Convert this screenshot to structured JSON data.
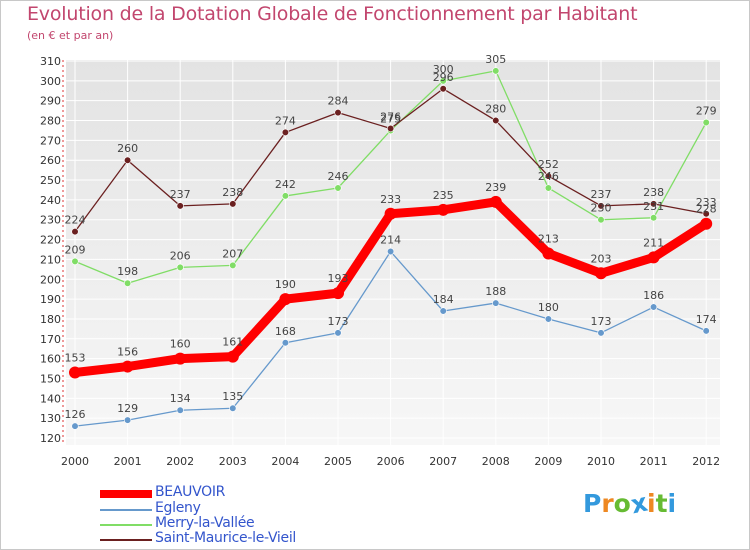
{
  "chart_data": {
    "type": "line",
    "title": "Evolution de la Dotation Globale de Fonctionnement par Habitant",
    "subtitle": "(en € et par an)",
    "x": [
      "2000",
      "2001",
      "2002",
      "2003",
      "2004",
      "2005",
      "2006",
      "2007",
      "2008",
      "2009",
      "2010",
      "2011",
      "2012"
    ],
    "ylim": [
      120,
      310
    ],
    "yticks": [
      120,
      130,
      140,
      150,
      160,
      170,
      180,
      190,
      200,
      210,
      220,
      230,
      240,
      250,
      260,
      270,
      280,
      290,
      300,
      310
    ],
    "grid": true,
    "legend_position": "bottom-left",
    "series": [
      {
        "name": "BEAUVOIR",
        "color": "#ff0000",
        "emphasis": true,
        "values": [
          153,
          156,
          160,
          161,
          190,
          193,
          233,
          235,
          239,
          213,
          203,
          211,
          228
        ],
        "labels": [
          "153",
          "156",
          "160",
          "161",
          "190",
          "193",
          "233",
          "235",
          "239",
          "213",
          "203",
          "211",
          "228"
        ]
      },
      {
        "name": "Egleny",
        "color": "#6699cc",
        "emphasis": false,
        "values": [
          126,
          129,
          134,
          135,
          168,
          173,
          214,
          184,
          188,
          180,
          173,
          186,
          174
        ],
        "labels": [
          "126",
          "129",
          "134",
          "135",
          "168",
          "173",
          "214",
          "184",
          "188",
          "180",
          "173",
          "186",
          "174"
        ]
      },
      {
        "name": "Merry-la-Vallée",
        "color": "#80dd66",
        "emphasis": false,
        "values": [
          209,
          198,
          206,
          207,
          242,
          246,
          275,
          300,
          305,
          246,
          230,
          231,
          279
        ],
        "labels": [
          "209",
          "198",
          "206",
          "207",
          "242",
          "246",
          "275",
          "300",
          "305",
          "246",
          "230",
          "231",
          "279"
        ]
      },
      {
        "name": "Saint-Maurice-le-Vieil",
        "color": "#6b2020",
        "emphasis": false,
        "values": [
          224,
          260,
          237,
          238,
          274,
          284,
          276,
          296,
          280,
          252,
          237,
          238,
          233
        ],
        "labels": [
          "224",
          "260",
          "237",
          "238",
          "274",
          "284",
          "276",
          "296",
          "280",
          "252",
          "237",
          "238",
          "233"
        ]
      }
    ]
  },
  "logo": {
    "letters": [
      "P",
      "r",
      "o",
      "x",
      "i",
      "t",
      "i"
    ],
    "colors": [
      "#3399dd",
      "#ee8822",
      "#66bb33",
      "#3399dd",
      "#ee8822",
      "#66bb33",
      "#3399dd"
    ]
  }
}
